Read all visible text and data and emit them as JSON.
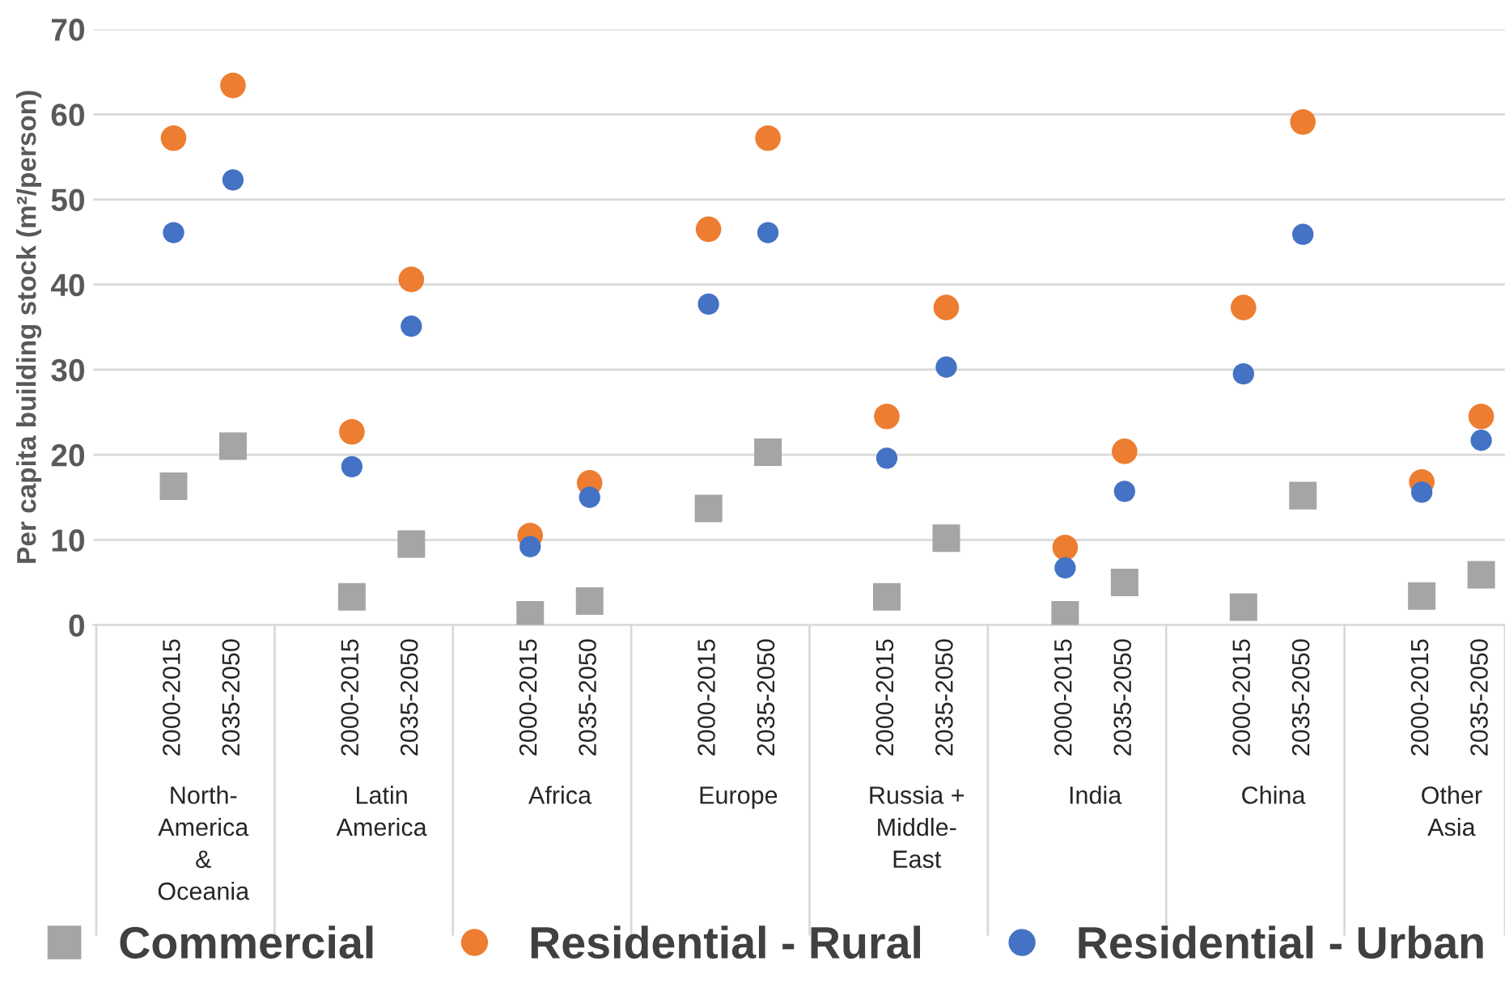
{
  "chart_data": {
    "type": "scatter",
    "ylabel": "Per capita building stock (m²/person)",
    "categories": [
      "2000-2015",
      "2035-2050",
      "2000-2015",
      "2035-2050",
      "2000-2015",
      "2035-2050",
      "2000-2015",
      "2035-2050",
      "2000-2015",
      "2035-2050",
      "2000-2015",
      "2035-2050",
      "2000-2015",
      "2035-2050",
      "2000-2015",
      "2035-2050"
    ],
    "annotations": [
      "North-\nAmerica\n&\nOceania",
      "Latin\nAmerica",
      "Africa",
      "Europe",
      "Russia +\nMiddle-\nEast",
      "India",
      "China",
      "Other\nAsia"
    ],
    "series": [
      {
        "name": "Commercial",
        "color": "#a5a5a5",
        "marker": "square",
        "values": [
          16.3,
          21.0,
          3.3,
          9.5,
          1.2,
          2.8,
          13.7,
          20.3,
          3.3,
          10.2,
          1.2,
          5.0,
          2.1,
          15.2,
          3.4,
          5.9
        ]
      },
      {
        "name": "Residential - Rural",
        "color": "#ed7d31",
        "marker": "circle",
        "values": [
          57.2,
          63.4,
          22.7,
          40.6,
          10.5,
          16.7,
          46.5,
          57.2,
          24.5,
          37.3,
          9.1,
          20.4,
          37.3,
          59.1,
          16.8,
          24.5
        ]
      },
      {
        "name": "Residential - Urban",
        "color": "#4472c4",
        "marker": "circle",
        "values": [
          46.1,
          52.3,
          18.6,
          35.1,
          9.2,
          15.0,
          37.7,
          46.1,
          19.6,
          30.3,
          6.7,
          15.7,
          29.5,
          45.9,
          15.6,
          21.7
        ]
      }
    ],
    "ylim": [
      0,
      70
    ],
    "yticks": [
      0,
      10,
      20,
      30,
      40,
      50,
      60,
      70
    ],
    "grid": "y",
    "legend": "bottom"
  }
}
